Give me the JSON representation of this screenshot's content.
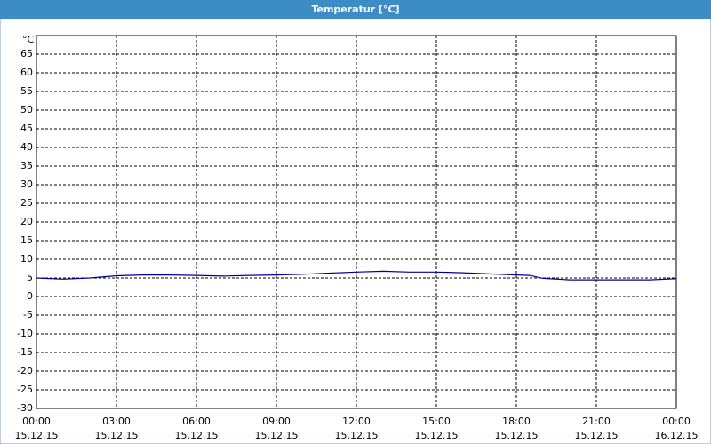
{
  "chart_data": {
    "type": "line",
    "title": "Temperatur [°C]",
    "y_label": "°C",
    "x": [
      "15.12.15 00:00",
      "15.12.15 01:00",
      "15.12.15 02:00",
      "15.12.15 03:00",
      "15.12.15 04:00",
      "15.12.15 05:00",
      "15.12.15 06:00",
      "15.12.15 07:00",
      "15.12.15 08:00",
      "15.12.15 09:00",
      "15.12.15 10:00",
      "15.12.15 11:00",
      "15.12.15 12:00",
      "15.12.15 13:00",
      "15.12.15 14:00",
      "15.12.15 15:00",
      "15.12.15 16:00",
      "15.12.15 17:00",
      "15.12.15 18:00",
      "15.12.15 18:30",
      "15.12.15 19:00",
      "15.12.15 20:00",
      "15.12.15 21:00",
      "15.12.15 22:00",
      "15.12.15 23:00",
      "16.12.15 00:00"
    ],
    "series": [
      {
        "name": "Temperatur",
        "color": "#000099",
        "values": [
          5.0,
          4.7,
          5.0,
          5.6,
          5.8,
          5.8,
          5.7,
          5.5,
          5.7,
          5.8,
          6.0,
          6.3,
          6.6,
          6.8,
          6.6,
          6.6,
          6.4,
          6.1,
          5.8,
          5.7,
          4.9,
          4.5,
          4.5,
          4.5,
          4.5,
          4.8
        ]
      }
    ],
    "xlim": [
      "15.12.15 00:00",
      "16.12.15 00:00"
    ],
    "xticks": [
      {
        "time": "00:00",
        "date": "15.12.15"
      },
      {
        "time": "03:00",
        "date": "15.12.15"
      },
      {
        "time": "06:00",
        "date": "15.12.15"
      },
      {
        "time": "09:00",
        "date": "15.12.15"
      },
      {
        "time": "12:00",
        "date": "15.12.15"
      },
      {
        "time": "15:00",
        "date": "15.12.15"
      },
      {
        "time": "18:00",
        "date": "15.12.15"
      },
      {
        "time": "21:00",
        "date": "15.12.15"
      },
      {
        "time": "00:00",
        "date": "16.12.15"
      }
    ],
    "ylim": [
      -30,
      70
    ],
    "yticks": [
      -30,
      -25,
      -20,
      -15,
      -10,
      -5,
      0,
      5,
      10,
      15,
      20,
      25,
      30,
      35,
      40,
      45,
      50,
      55,
      60,
      65
    ],
    "grid": true
  }
}
